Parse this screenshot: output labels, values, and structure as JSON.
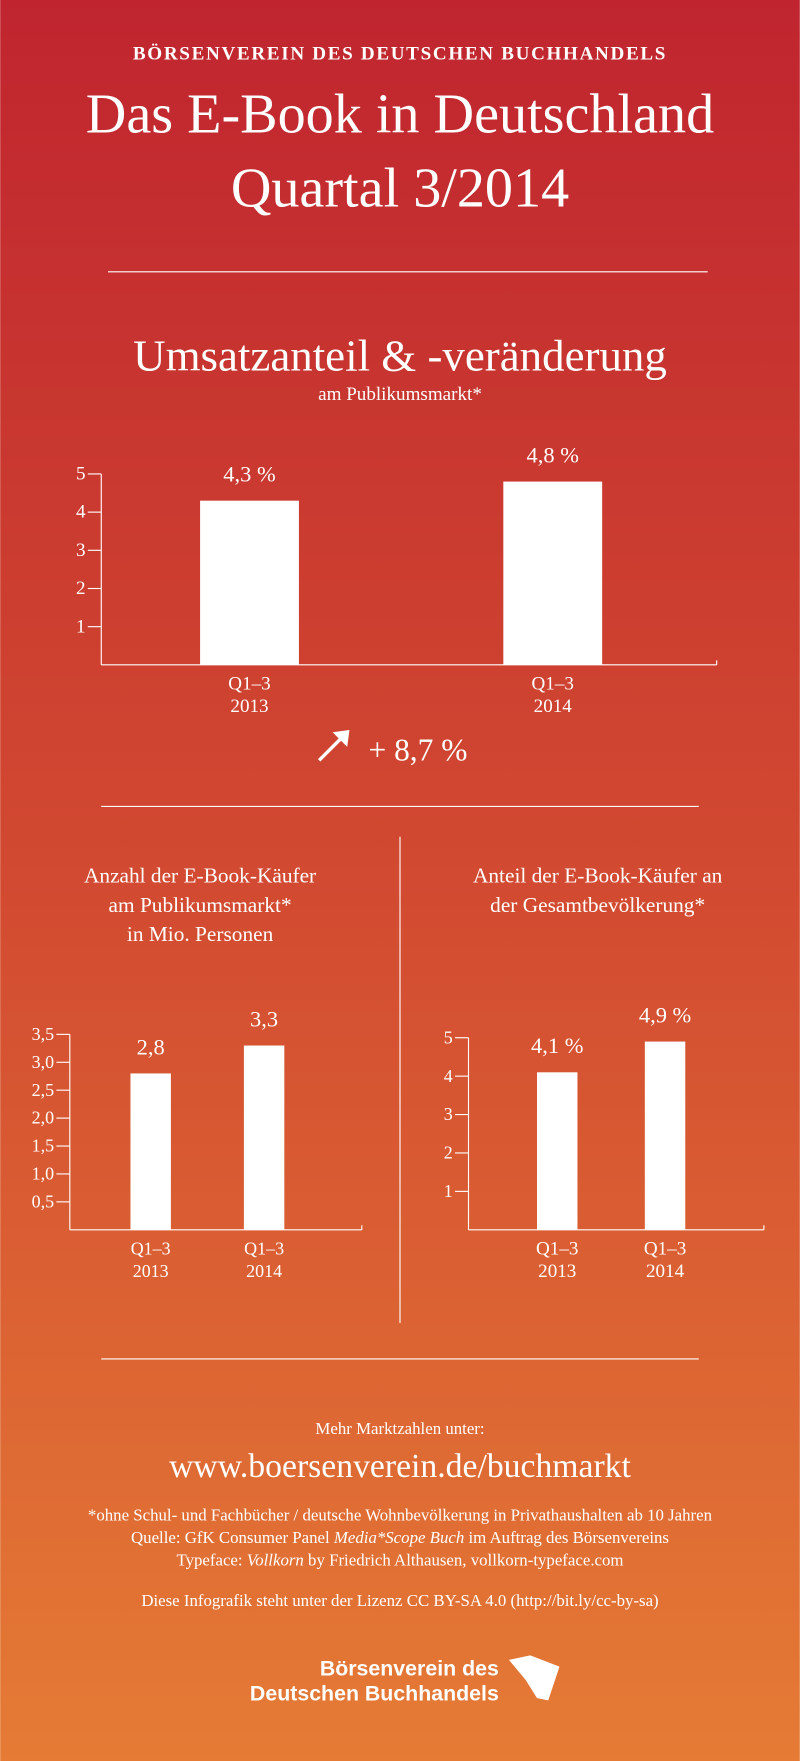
{
  "header": {
    "publisher": "BÖRSENVEREIN DES DEUTSCHEN BUCHHANDELS",
    "title_lines": [
      "Das E-Book in Deutschland",
      "Quartal 3/2014"
    ]
  },
  "chart_data": [
    {
      "type": "bar",
      "title": "Umsatzanteil & -veränderung",
      "subtitle": "am Publikumsmarkt*",
      "categories": [
        [
          "Q1–3",
          "2013"
        ],
        [
          "Q1–3",
          "2014"
        ]
      ],
      "values": [
        4.3,
        4.8
      ],
      "value_labels": [
        "4,3 %",
        "4,8 %"
      ],
      "color": "#ffffff",
      "ylim": [
        0,
        5
      ],
      "yticks": [
        1,
        2,
        3,
        4,
        5
      ],
      "annotation": "+ 8,7 %"
    },
    {
      "type": "bar",
      "title": [
        "Anzahl der E-Book-Käufer",
        "am Publikumsmarkt*",
        "in Mio. Personen"
      ],
      "categories": [
        [
          "Q1–3",
          "2013"
        ],
        [
          "Q1–3",
          "2014"
        ]
      ],
      "values": [
        2.8,
        3.3
      ],
      "value_labels": [
        "2,8",
        "3,3"
      ],
      "color": "#ffffff",
      "ylim": [
        0,
        3.5
      ],
      "yticks": [
        {
          "value": 0.5,
          "label": "0,5"
        },
        {
          "value": 1.0,
          "label": "1,0"
        },
        {
          "value": 1.5,
          "label": "1,5"
        },
        {
          "value": 2.0,
          "label": "2,0"
        },
        {
          "value": 2.5,
          "label": "2,5"
        },
        {
          "value": 3.0,
          "label": "3,0"
        },
        {
          "value": 3.5,
          "label": "3,5"
        }
      ]
    },
    {
      "type": "bar",
      "title": [
        "Anteil der E-Book-Käufer an",
        "der Gesamtbevölkerung*"
      ],
      "categories": [
        [
          "Q1–3",
          "2013"
        ],
        [
          "Q1–3",
          "2014"
        ]
      ],
      "values": [
        4.1,
        4.9
      ],
      "value_labels": [
        "4,1 %",
        "4,9 %"
      ],
      "color": "#ffffff",
      "ylim": [
        0,
        5
      ],
      "yticks": [
        1,
        2,
        3,
        4,
        5
      ]
    }
  ],
  "footer": {
    "more": "Mehr Marktzahlen unter:",
    "url": "www.boersenverein.de/buchmarkt",
    "note": "*ohne Schul- und Fachbücher / deutsche Wohnbevölkerung in Privathaushalten ab 10 Jahren",
    "source": [
      "Quelle: GfK Consumer Panel",
      "Media*Scope Buch",
      "im Auftrag des Börsenvereins"
    ],
    "typeface": [
      "Typeface:",
      "Vollkorn",
      "by Friedrich Althausen, vollkorn-typeface.com"
    ],
    "license": "Diese Infografik steht unter der Lizenz CC BY-SA 4.0 (http://bit.ly/cc-by-sa)",
    "logo_lines": [
      "Börsenverein des",
      "Deutschen Buchhandels"
    ]
  }
}
